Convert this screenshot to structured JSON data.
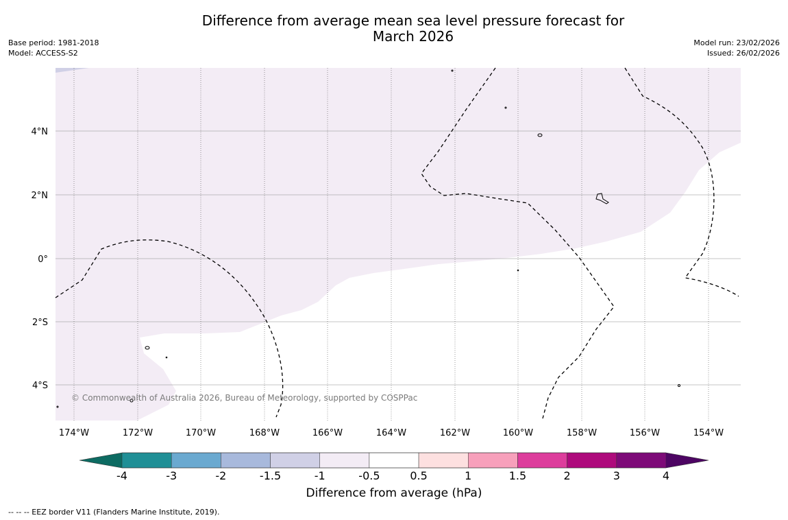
{
  "title": {
    "line1": "Difference from average mean sea level pressure forecast for",
    "line2": "March 2026"
  },
  "meta_left": {
    "base_period": "Base period: 1981-2018",
    "model": "Model: ACCESS-S2"
  },
  "meta_right": {
    "model_run": "Model run: 23/02/2026",
    "issued": "Issued: 26/02/2026"
  },
  "map": {
    "x_ticks": [
      "174°W",
      "172°W",
      "170°W",
      "168°W",
      "166°W",
      "164°W",
      "162°W",
      "160°W",
      "158°W",
      "156°W",
      "154°W"
    ],
    "y_ticks": [
      "4°N",
      "2°N",
      "0°",
      "2°S",
      "4°S"
    ],
    "copyright": "© Commonwealth of Australia 2026, Bureau of Meteorology, supported by COSPPac",
    "colors": {
      "light_anomaly": "#f3ecf5",
      "neutral": "#ffffff",
      "grid": "#999999"
    }
  },
  "colorbar": {
    "ticks": [
      "-4",
      "-3",
      "-2",
      "-1.5",
      "-1",
      "-0.5",
      "0.5",
      "1",
      "1.5",
      "2",
      "3",
      "4"
    ],
    "colors": [
      "#0d6b62",
      "#1f8f96",
      "#6aa9d0",
      "#a8b9dc",
      "#d0d0e6",
      "#f3ecf5",
      "#ffffff",
      "#fde0e0",
      "#f7a0bb",
      "#dd3d9c",
      "#ae0a7c",
      "#7d0a78",
      "#4d0563"
    ],
    "label": "Difference from average (hPa)"
  },
  "footnote": "--  --  -- EEZ border V11 (Flanders Marine Institute, 2019)."
}
